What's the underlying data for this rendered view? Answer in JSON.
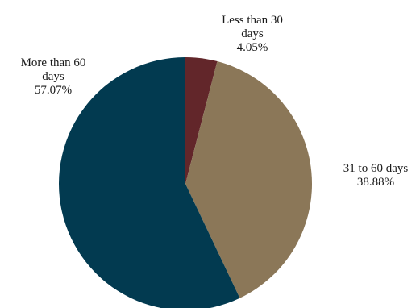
{
  "chart_data": {
    "type": "pie",
    "title": "",
    "start_angle_deg": 0,
    "direction": "clockwise",
    "slices": [
      {
        "name": "Less than 30 days",
        "label_lines": [
          "Less than 30",
          "days",
          "4.05%"
        ],
        "value": 4.05,
        "color": "#62262a"
      },
      {
        "name": "31 to 60 days",
        "label_lines": [
          "31 to 60 days",
          "38.88%"
        ],
        "value": 38.88,
        "color": "#8b7758"
      },
      {
        "name": "More than 60 days",
        "label_lines": [
          "More than 60",
          "days",
          "57.07%"
        ],
        "value": 57.07,
        "color": "#023a50"
      }
    ],
    "legend": "none"
  }
}
